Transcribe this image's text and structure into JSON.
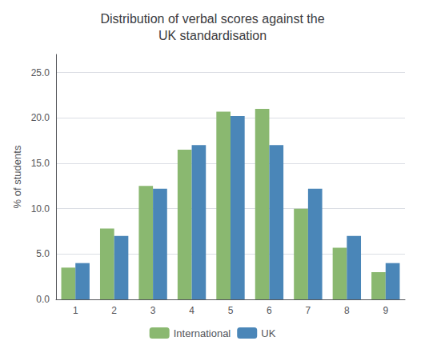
{
  "chart_data": {
    "type": "bar",
    "title": "Distribution of verbal scores against the\nUK standardisation",
    "ylabel": "% of students",
    "categories": [
      "1",
      "2",
      "3",
      "4",
      "5",
      "6",
      "7",
      "8",
      "9"
    ],
    "series": [
      {
        "name": "International",
        "color": "#8ab870",
        "values": [
          3.5,
          7.8,
          12.5,
          16.5,
          20.7,
          21.0,
          10.0,
          5.7,
          3.0
        ]
      },
      {
        "name": "UK",
        "color": "#4a86b8",
        "values": [
          4.0,
          7.0,
          12.2,
          17.0,
          20.2,
          17.0,
          12.2,
          7.0,
          4.0
        ]
      }
    ],
    "ylim": [
      0,
      27
    ],
    "yticks": [
      {
        "value": 0,
        "label": "0.0"
      },
      {
        "value": 5,
        "label": "5.0"
      },
      {
        "value": 10,
        "label": "10.0"
      },
      {
        "value": 15,
        "label": "15.0"
      },
      {
        "value": 20,
        "label": "20.0"
      },
      {
        "value": 25,
        "label": "25.0"
      }
    ],
    "grid": true,
    "legend": "bottom"
  }
}
